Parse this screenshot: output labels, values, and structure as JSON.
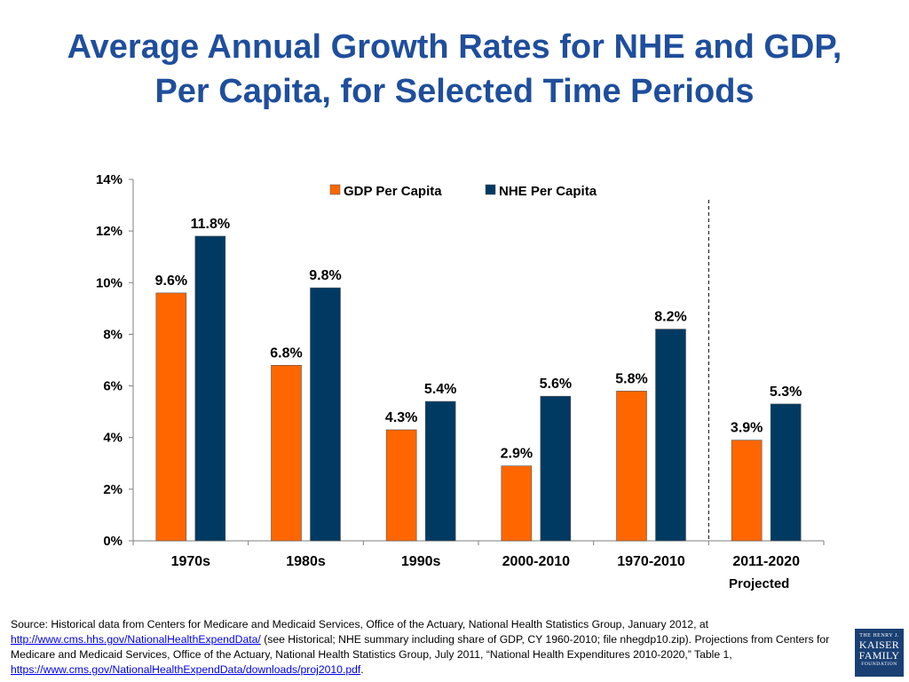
{
  "title": {
    "line1": "Average Annual Growth Rates for NHE and GDP,",
    "line2": "Per Capita, for Selected Time Periods"
  },
  "chart_data": {
    "type": "bar",
    "categories": [
      "1970s",
      "1980s",
      "1990s",
      "2000-2010",
      "1970-2010",
      "2011-2020"
    ],
    "series": [
      {
        "name": "GDP Per Capita",
        "color": "#ff6600",
        "values": [
          9.6,
          6.8,
          4.3,
          2.9,
          5.8,
          3.9
        ],
        "labels": [
          "9.6%",
          "6.8%",
          "4.3%",
          "2.9%",
          "5.8%",
          "3.9%"
        ]
      },
      {
        "name": "NHE Per Capita",
        "color": "#003a63",
        "values": [
          11.8,
          9.8,
          5.4,
          5.6,
          8.2,
          5.3
        ],
        "labels": [
          "11.8%",
          "9.8%",
          "5.4%",
          "5.6%",
          "8.2%",
          "5.3%"
        ]
      }
    ],
    "yticks": [
      0,
      2,
      4,
      6,
      8,
      10,
      12,
      14
    ],
    "ytick_labels": [
      "0%",
      "2%",
      "4%",
      "6%",
      "8%",
      "10%",
      "12%",
      "14%"
    ],
    "ylim": [
      0,
      14
    ],
    "legend_position": "top-center",
    "grid": false,
    "projection_divider_after_category": "1970-2010",
    "annotation": "Projected"
  },
  "source": {
    "prefix": "Source: Historical data from Centers for Medicare and Medicaid Services, Office of the Actuary, National Health Statistics Group, January 2012, at ",
    "link1": "http://www.cms.hhs.gov/NationalHealthExpendData/",
    "middle": " (see Historical; NHE summary including share of GDP, CY 1960-2010; file nhegdp10.zip). Projections from Centers for Medicare and Medicaid Services, Office of the Actuary, National Health Statistics Group, July 2011, “National Health Expenditures 2010-2020,” Table 1, ",
    "link2": "https://www.cms.gov/NationalHealthExpendData/downloads/proj2010.pdf",
    "suffix": "."
  },
  "logo": {
    "line1": "THE HENRY J.",
    "line2": "KAISER",
    "line3": "FAMILY",
    "line4": "FOUNDATION"
  }
}
